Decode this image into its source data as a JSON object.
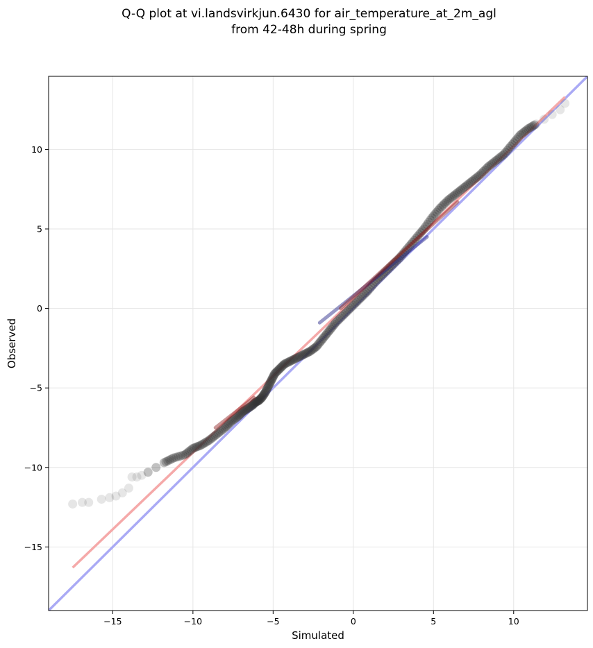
{
  "chart_data": {
    "type": "scatter",
    "title": "Q-Q plot at vi.landsvirkjun.6430 for air_temperature_at_2m_agl",
    "subtitle": "from 42-48h during spring",
    "xlabel": "Simulated",
    "ylabel": "Observed",
    "xlim": [
      -19.0,
      14.6
    ],
    "ylim": [
      -19.0,
      14.6
    ],
    "grid": true,
    "x_ticks": [
      -15,
      -10,
      -5,
      0,
      5,
      10
    ],
    "y_ticks": [
      -15,
      -10,
      -5,
      0,
      5,
      10
    ],
    "x_tick_labels": [
      "−15",
      "−10",
      "−5",
      "0",
      "5",
      "10"
    ],
    "y_tick_labels": [
      "−15",
      "−10",
      "−5",
      "0",
      "5",
      "10"
    ],
    "reference_lines": [
      {
        "kind": "identity",
        "color": "#aaaaf5",
        "x": [
          -19.0,
          14.6
        ],
        "y": [
          -19.0,
          14.6
        ]
      },
      {
        "kind": "fit",
        "color": "#f5a9a9",
        "x": [
          -17.5,
          13.2
        ],
        "y": [
          -16.3,
          13.3
        ]
      }
    ],
    "quantile_points": {
      "color": "#333333",
      "x": [
        -17.5,
        -16.9,
        -16.5,
        -15.7,
        -15.2,
        -14.8,
        -14.4,
        -14.0,
        -13.8,
        -13.5,
        -13.2,
        -12.8,
        -12.3,
        -11.8,
        -11.2,
        -10.5,
        -10.0,
        -9.5,
        -9.0,
        -8.5,
        -8.0,
        -7.6,
        -7.2,
        -6.9,
        -6.6,
        -6.3,
        -6.1,
        -5.9,
        -5.7,
        -5.5,
        -5.3,
        -5.1,
        -4.9,
        -4.6,
        -4.3,
        -3.9,
        -3.5,
        -3.1,
        -2.7,
        -2.3,
        -1.9,
        -1.5,
        -1.1,
        -0.6,
        -0.1,
        0.4,
        0.9,
        1.4,
        1.9,
        2.4,
        2.9,
        3.4,
        3.9,
        4.4,
        4.9,
        5.4,
        5.9,
        6.4,
        6.9,
        7.4,
        7.9,
        8.4,
        8.9,
        9.4,
        9.9,
        10.4,
        10.9,
        11.4,
        11.9,
        12.4,
        12.9,
        13.2
      ],
      "y": [
        -12.3,
        -12.2,
        -12.2,
        -12.0,
        -11.9,
        -11.8,
        -11.6,
        -11.3,
        -10.6,
        -10.6,
        -10.5,
        -10.3,
        -10.0,
        -9.7,
        -9.4,
        -9.2,
        -8.8,
        -8.6,
        -8.3,
        -7.9,
        -7.5,
        -7.1,
        -6.8,
        -6.5,
        -6.3,
        -6.1,
        -5.9,
        -5.8,
        -5.6,
        -5.3,
        -4.9,
        -4.5,
        -4.1,
        -3.8,
        -3.5,
        -3.3,
        -3.1,
        -2.9,
        -2.7,
        -2.4,
        -1.9,
        -1.4,
        -0.9,
        -0.4,
        0.1,
        0.6,
        1.1,
        1.7,
        2.2,
        2.7,
        3.2,
        3.8,
        4.4,
        5.0,
        5.7,
        6.3,
        6.8,
        7.2,
        7.6,
        8.0,
        8.4,
        8.9,
        9.3,
        9.7,
        10.3,
        10.9,
        11.3,
        11.6,
        11.9,
        12.2,
        12.5,
        12.9
      ]
    },
    "highlighted_segments": [
      {
        "color": "#1a1a80",
        "x": [
          -2.1,
          4.6
        ],
        "y": [
          -0.9,
          4.5
        ]
      },
      {
        "color": "#8a1a1a",
        "x": [
          -0.8,
          6.5
        ],
        "y": [
          0.0,
          6.7
        ]
      },
      {
        "color": "#8a1a1a",
        "x": [
          -8.6,
          -6.2
        ],
        "y": [
          -7.5,
          -5.6
        ]
      }
    ]
  }
}
